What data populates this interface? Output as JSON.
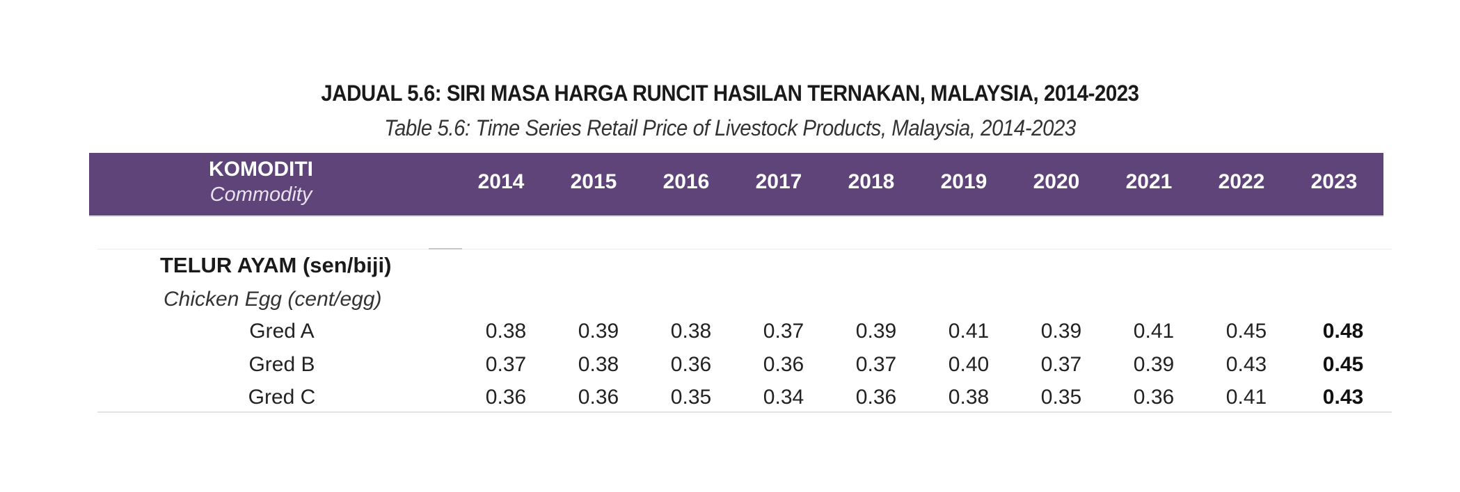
{
  "title": {
    "main": "JADUAL 5.6: SIRI MASA HARGA RUNCIT HASILAN TERNAKAN, MALAYSIA, 2014-2023",
    "sub": "Table 5.6: Time Series Retail Price of Livestock Products, Malaysia, 2014-2023"
  },
  "header": {
    "commodity_ms": "KOMODITI",
    "commodity_en": "Commodity",
    "years": [
      "2014",
      "2015",
      "2016",
      "2017",
      "2018",
      "2019",
      "2020",
      "2021",
      "2022",
      "2023"
    ],
    "bar_color": "#5e4479"
  },
  "section": {
    "name_ms": "TELUR AYAM  (sen/biji)",
    "name_en": "Chicken Egg  (cent/egg)",
    "rows": [
      {
        "label": "Gred A",
        "values": [
          "0.38",
          "0.39",
          "0.38",
          "0.37",
          "0.39",
          "0.41",
          "0.39",
          "0.41",
          "0.45",
          "0.48"
        ]
      },
      {
        "label": "Gred B",
        "values": [
          "0.37",
          "0.38",
          "0.36",
          "0.36",
          "0.37",
          "0.40",
          "0.37",
          "0.39",
          "0.43",
          "0.45"
        ]
      },
      {
        "label": "Gred C",
        "values": [
          "0.36",
          "0.36",
          "0.35",
          "0.34",
          "0.36",
          "0.38",
          "0.35",
          "0.36",
          "0.41",
          "0.43"
        ]
      }
    ]
  }
}
